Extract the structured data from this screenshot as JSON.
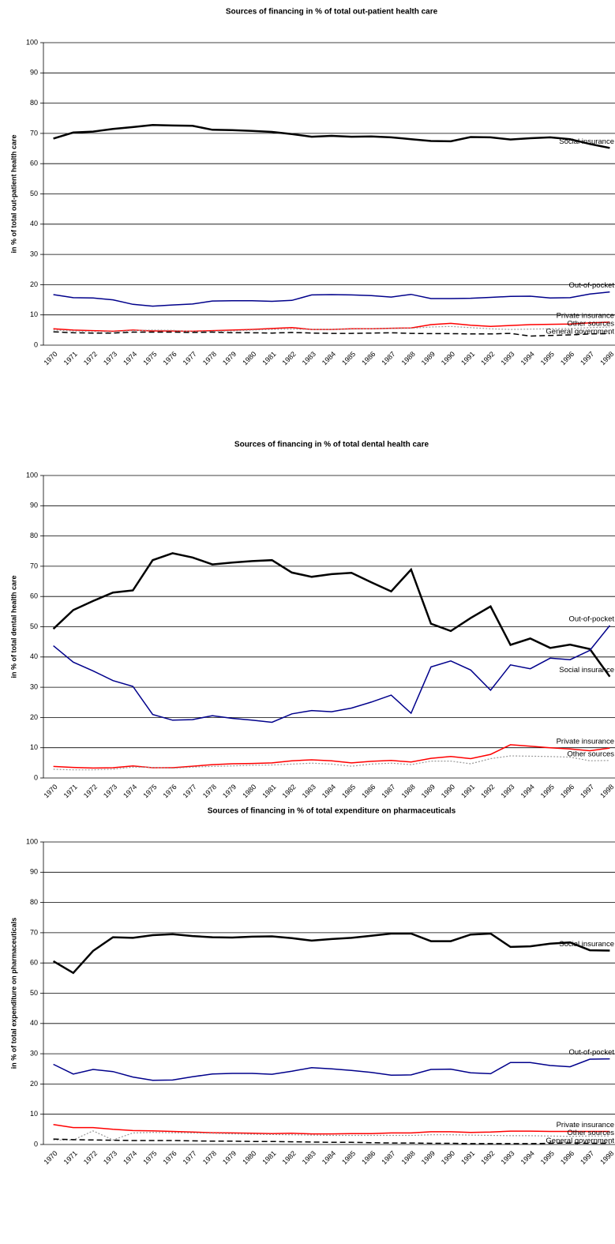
{
  "chart_data": [
    {
      "type": "line",
      "title": "Sources of financing in % of total out-patient health care",
      "y_label": "in % of total out-patient health care",
      "categories": [
        "1970",
        "1971",
        "1972",
        "1973",
        "1974",
        "1975",
        "1976",
        "1977",
        "1978",
        "1979",
        "1980",
        "1981",
        "1982",
        "1983",
        "1984",
        "1985",
        "1986",
        "1987",
        "1988",
        "1989",
        "1990",
        "1991",
        "1992",
        "1993",
        "1994",
        "1995",
        "1996",
        "1997",
        "1998"
      ],
      "ylim": [
        0,
        100
      ],
      "yticks": [
        0,
        10,
        20,
        30,
        40,
        50,
        60,
        70,
        80,
        90,
        100
      ],
      "grid": true,
      "series": [
        {
          "name": "Social insurance",
          "color": "#000000",
          "dash": "solid",
          "width": 2.5,
          "values": [
            68.3,
            70.3,
            70.6,
            71.5,
            72.1,
            72.8,
            72.6,
            72.5,
            71.2,
            71.1,
            70.8,
            70.5,
            69.8,
            68.9,
            69.2,
            68.9,
            69.0,
            68.7,
            68.1,
            67.5,
            67.4,
            68.8,
            68.7,
            68.0,
            68.4,
            68.7,
            68.1,
            66.5,
            65.2
          ]
        },
        {
          "name": "Out-of-pocket",
          "color": "#00008b",
          "dash": "solid",
          "width": 1.5,
          "values": [
            16.7,
            15.7,
            15.6,
            15.0,
            13.5,
            12.9,
            13.3,
            13.6,
            14.6,
            14.7,
            14.7,
            14.5,
            14.8,
            16.6,
            16.7,
            16.6,
            16.4,
            15.9,
            16.8,
            15.4,
            15.4,
            15.5,
            15.8,
            16.1,
            16.2,
            15.6,
            15.7,
            16.9,
            17.6
          ]
        },
        {
          "name": "Private insurance",
          "color": "#ff0000",
          "dash": "solid",
          "width": 1.5,
          "values": [
            5.4,
            5.0,
            4.8,
            4.6,
            5.0,
            4.7,
            4.7,
            4.6,
            4.8,
            5.0,
            5.2,
            5.5,
            5.8,
            5.2,
            5.2,
            5.4,
            5.4,
            5.6,
            5.7,
            6.8,
            7.2,
            6.6,
            6.2,
            6.5,
            6.8,
            6.9,
            7.0,
            7.4,
            7.6
          ]
        },
        {
          "name": "Other sources",
          "color": "#999999",
          "dash": "dotted",
          "width": 1.2,
          "values": [
            5.0,
            4.7,
            4.5,
            4.4,
            4.8,
            5.0,
            4.9,
            4.5,
            4.6,
            4.7,
            5.0,
            5.2,
            5.3,
            5.2,
            5.2,
            5.3,
            5.4,
            5.5,
            5.6,
            6.0,
            6.2,
            5.8,
            5.4,
            5.2,
            5.3,
            5.4,
            5.5,
            5.8,
            6.0
          ]
        },
        {
          "name": "General government",
          "color": "#000000",
          "dash": "dashed",
          "width": 1.5,
          "values": [
            4.4,
            4.1,
            4.0,
            4.0,
            4.3,
            4.3,
            4.3,
            4.2,
            4.3,
            4.1,
            4.1,
            4.0,
            4.2,
            4.0,
            3.9,
            3.9,
            4.0,
            4.1,
            3.9,
            3.8,
            3.8,
            3.7,
            3.7,
            3.9,
            3.0,
            3.2,
            3.4,
            3.7,
            3.8
          ]
        }
      ]
    },
    {
      "type": "line",
      "title": "Sources of financing in % of total dental health care",
      "y_label": "in % of total dental health care",
      "categories": [
        "1970",
        "1971",
        "1972",
        "1973",
        "1974",
        "1975",
        "1976",
        "1977",
        "1978",
        "1979",
        "1980",
        "1981",
        "1982",
        "1983",
        "1984",
        "1985",
        "1986",
        "1987",
        "1988",
        "1989",
        "1990",
        "1991",
        "1992",
        "1993",
        "1994",
        "1995",
        "1996",
        "1997",
        "1998"
      ],
      "ylim": [
        0,
        100
      ],
      "yticks": [
        0,
        10,
        20,
        30,
        40,
        50,
        60,
        70,
        80,
        90,
        100
      ],
      "grid": true,
      "series": [
        {
          "name": "Social insurance",
          "color": "#000000",
          "dash": "solid",
          "width": 2.5,
          "values": [
            49.3,
            55.5,
            58.5,
            61.3,
            62.0,
            72.0,
            74.3,
            72.9,
            70.6,
            71.2,
            71.7,
            72.0,
            67.9,
            66.5,
            67.4,
            67.8,
            64.7,
            61.7,
            68.9,
            51.0,
            48.6,
            52.9,
            56.7,
            44.0,
            46.1,
            43.0,
            44.1,
            42.6,
            33.5
          ]
        },
        {
          "name": "Out-of-pocket",
          "color": "#00008b",
          "dash": "solid",
          "width": 1.5,
          "values": [
            43.7,
            38.3,
            35.4,
            32.2,
            30.3,
            21.0,
            19.1,
            19.3,
            20.6,
            19.7,
            19.1,
            18.4,
            21.2,
            22.3,
            21.9,
            23.1,
            25.1,
            27.4,
            21.4,
            36.7,
            38.7,
            35.7,
            29.0,
            37.4,
            36.1,
            39.6,
            39.1,
            42.2,
            50.4
          ]
        },
        {
          "name": "Private insurance",
          "color": "#ff0000",
          "dash": "solid",
          "width": 1.5,
          "values": [
            3.8,
            3.5,
            3.3,
            3.4,
            4.0,
            3.4,
            3.4,
            3.9,
            4.4,
            4.7,
            4.8,
            5.0,
            5.7,
            6.0,
            5.7,
            5.0,
            5.5,
            5.8,
            5.3,
            6.5,
            7.1,
            6.4,
            7.8,
            11.0,
            10.5,
            10.0,
            9.6,
            9.0,
            9.9
          ]
        },
        {
          "name": "Other sources",
          "color": "#999999",
          "dash": "dotted",
          "width": 1.2,
          "values": [
            2.9,
            2.7,
            2.7,
            2.9,
            3.6,
            3.5,
            3.2,
            3.6,
            3.8,
            4.0,
            4.2,
            4.3,
            4.6,
            4.9,
            4.6,
            3.9,
            4.6,
            4.9,
            4.4,
            5.6,
            5.6,
            4.7,
            6.4,
            7.3,
            7.2,
            7.1,
            6.9,
            5.7,
            5.8
          ]
        }
      ]
    },
    {
      "type": "line",
      "title": "Sources of financing in % of total expenditure on pharmaceuticals",
      "y_label": "in % of total expenditure on pharmaceuticals",
      "categories": [
        "1970",
        "1971",
        "1972",
        "1973",
        "1974",
        "1975",
        "1976",
        "1977",
        "1978",
        "1979",
        "1980",
        "1981",
        "1982",
        "1983",
        "1984",
        "1985",
        "1986",
        "1987",
        "1988",
        "1989",
        "1990",
        "1991",
        "1992",
        "1993",
        "1994",
        "1995",
        "1996",
        "1997",
        "1998"
      ],
      "ylim": [
        0,
        100
      ],
      "yticks": [
        0,
        10,
        20,
        30,
        40,
        50,
        60,
        70,
        80,
        90,
        100
      ],
      "grid": true,
      "series": [
        {
          "name": "Social insurance",
          "color": "#000000",
          "dash": "solid",
          "width": 2.5,
          "values": [
            60.6,
            56.7,
            64.0,
            68.5,
            68.3,
            69.2,
            69.5,
            68.9,
            68.5,
            68.4,
            68.7,
            68.8,
            68.2,
            67.4,
            67.9,
            68.3,
            69.0,
            69.7,
            69.7,
            67.2,
            67.2,
            69.4,
            69.7,
            65.3,
            65.5,
            66.4,
            66.8,
            64.2,
            64.1
          ]
        },
        {
          "name": "Out-of-pocket",
          "color": "#00008b",
          "dash": "solid",
          "width": 1.5,
          "values": [
            26.5,
            23.3,
            24.8,
            24.1,
            22.3,
            21.2,
            21.3,
            22.4,
            23.3,
            23.5,
            23.5,
            23.2,
            24.2,
            25.4,
            25.0,
            24.5,
            23.8,
            22.9,
            23.0,
            24.8,
            24.9,
            23.7,
            23.4,
            27.1,
            27.1,
            26.1,
            25.7,
            28.2,
            28.3
          ]
        },
        {
          "name": "Private insurance",
          "color": "#ff0000",
          "dash": "solid",
          "width": 1.5,
          "values": [
            6.6,
            5.6,
            5.6,
            5.0,
            4.6,
            4.5,
            4.3,
            4.1,
            3.9,
            3.8,
            3.7,
            3.6,
            3.7,
            3.5,
            3.5,
            3.6,
            3.6,
            3.8,
            3.8,
            4.2,
            4.2,
            4.0,
            4.1,
            4.4,
            4.4,
            4.3,
            4.3,
            4.3,
            4.3
          ]
        },
        {
          "name": "Other sources",
          "color": "#999999",
          "dash": "dotted",
          "width": 1.2,
          "values": [
            1.5,
            1.5,
            4.5,
            1.5,
            3.8,
            4.0,
            3.9,
            3.8,
            3.7,
            3.5,
            3.4,
            3.3,
            3.2,
            3.1,
            3.0,
            3.0,
            3.0,
            3.0,
            3.0,
            3.2,
            3.2,
            3.1,
            3.0,
            2.9,
            2.9,
            2.8,
            2.7,
            2.8,
            2.8
          ]
        },
        {
          "name": "General government",
          "color": "#000000",
          "dash": "dashed",
          "width": 1.5,
          "values": [
            1.8,
            1.6,
            1.5,
            1.4,
            1.3,
            1.3,
            1.3,
            1.2,
            1.1,
            1.1,
            1.0,
            1.0,
            0.9,
            0.8,
            0.7,
            0.7,
            0.6,
            0.5,
            0.5,
            0.4,
            0.4,
            0.3,
            0.3,
            0.3,
            0.3,
            0.4,
            0.5,
            0.4,
            0.4
          ]
        }
      ]
    }
  ]
}
